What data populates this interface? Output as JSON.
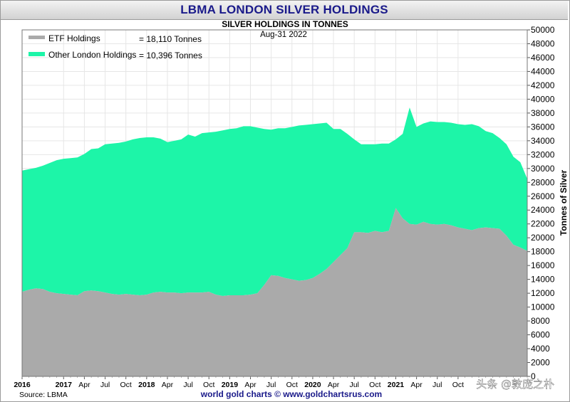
{
  "header": {
    "title": "LBMA LONDON SILVER HOLDINGS"
  },
  "footer": {
    "source": "Source: LBMA",
    "credit": "world gold charts © www.goldchartsrus.com",
    "watermark": "头条 @敦庞之朴"
  },
  "chart_data": {
    "type": "area",
    "stacked": true,
    "title": "SILVER HOLDINGS IN TONNES",
    "subtitle": "Aug-31  2022",
    "xlabel": "",
    "ylabel": "Tonnes of Silver",
    "ylim": [
      0,
      50000
    ],
    "ytick_step": 2000,
    "grid": true,
    "legend_position": "top-left",
    "x_start": "2016-07",
    "x_end": "2022-08",
    "x_ticks": [
      {
        "label": "2016",
        "date": "2016-07",
        "bold": true
      },
      {
        "label": "2017",
        "date": "2017-01",
        "bold": true
      },
      {
        "label": "Apr",
        "date": "2017-04",
        "bold": false
      },
      {
        "label": "Jul",
        "date": "2017-07",
        "bold": false
      },
      {
        "label": "Oct",
        "date": "2017-10",
        "bold": false
      },
      {
        "label": "2018",
        "date": "2018-01",
        "bold": true
      },
      {
        "label": "Apr",
        "date": "2018-04",
        "bold": false
      },
      {
        "label": "Jul",
        "date": "2018-07",
        "bold": false
      },
      {
        "label": "Oct",
        "date": "2018-10",
        "bold": false
      },
      {
        "label": "2019",
        "date": "2019-01",
        "bold": true
      },
      {
        "label": "Apr",
        "date": "2019-04",
        "bold": false
      },
      {
        "label": "Jul",
        "date": "2019-07",
        "bold": false
      },
      {
        "label": "Oct",
        "date": "2019-10",
        "bold": false
      },
      {
        "label": "2020",
        "date": "2020-01",
        "bold": true
      },
      {
        "label": "Apr",
        "date": "2020-04",
        "bold": false
      },
      {
        "label": "Jul",
        "date": "2020-07",
        "bold": false
      },
      {
        "label": "Oct",
        "date": "2020-10",
        "bold": false
      },
      {
        "label": "2021",
        "date": "2021-01",
        "bold": true
      },
      {
        "label": "Apr",
        "date": "2021-04",
        "bold": false
      },
      {
        "label": "Jul",
        "date": "2021-07",
        "bold": false
      },
      {
        "label": "Oct",
        "date": "2021-10",
        "bold": false
      }
    ],
    "series": [
      {
        "name": "ETF Holdings",
        "legend_value": "= 18,110 Tonnes",
        "color": "#aaaaaa",
        "points": [
          [
            "2016-07",
            12200
          ],
          [
            "2016-08",
            12500
          ],
          [
            "2016-09",
            12700
          ],
          [
            "2016-10",
            12600
          ],
          [
            "2016-11",
            12200
          ],
          [
            "2016-12",
            12000
          ],
          [
            "2017-01",
            11900
          ],
          [
            "2017-02",
            11800
          ],
          [
            "2017-03",
            11700
          ],
          [
            "2017-04",
            12300
          ],
          [
            "2017-05",
            12400
          ],
          [
            "2017-06",
            12300
          ],
          [
            "2017-07",
            12100
          ],
          [
            "2017-08",
            11900
          ],
          [
            "2017-09",
            11800
          ],
          [
            "2017-10",
            11900
          ],
          [
            "2017-11",
            11800
          ],
          [
            "2017-12",
            11700
          ],
          [
            "2018-01",
            11800
          ],
          [
            "2018-02",
            12100
          ],
          [
            "2018-03",
            12200
          ],
          [
            "2018-04",
            12100
          ],
          [
            "2018-05",
            12100
          ],
          [
            "2018-06",
            12000
          ],
          [
            "2018-07",
            12100
          ],
          [
            "2018-08",
            12100
          ],
          [
            "2018-09",
            12100
          ],
          [
            "2018-10",
            12200
          ],
          [
            "2018-11",
            11800
          ],
          [
            "2018-12",
            11600
          ],
          [
            "2019-01",
            11700
          ],
          [
            "2019-02",
            11700
          ],
          [
            "2019-03",
            11700
          ],
          [
            "2019-04",
            11800
          ],
          [
            "2019-05",
            12000
          ],
          [
            "2019-06",
            13200
          ],
          [
            "2019-07",
            14600
          ],
          [
            "2019-08",
            14500
          ],
          [
            "2019-09",
            14200
          ],
          [
            "2019-10",
            14000
          ],
          [
            "2019-11",
            13800
          ],
          [
            "2019-12",
            13900
          ],
          [
            "2020-01",
            14200
          ],
          [
            "2020-02",
            14800
          ],
          [
            "2020-03",
            15500
          ],
          [
            "2020-04",
            16500
          ],
          [
            "2020-05",
            17500
          ],
          [
            "2020-06",
            18500
          ],
          [
            "2020-07",
            20800
          ],
          [
            "2020-08",
            20800
          ],
          [
            "2020-09",
            20700
          ],
          [
            "2020-10",
            21000
          ],
          [
            "2020-11",
            20800
          ],
          [
            "2020-12",
            21000
          ],
          [
            "2021-01",
            24300
          ],
          [
            "2021-02",
            22800
          ],
          [
            "2021-03",
            22000
          ],
          [
            "2021-04",
            21900
          ],
          [
            "2021-05",
            22300
          ],
          [
            "2021-06",
            22000
          ],
          [
            "2021-07",
            21900
          ],
          [
            "2021-08",
            22000
          ],
          [
            "2021-09",
            21800
          ],
          [
            "2021-10",
            21500
          ],
          [
            "2021-11",
            21300
          ],
          [
            "2021-12",
            21100
          ],
          [
            "2022-01",
            21400
          ],
          [
            "2022-02",
            21500
          ],
          [
            "2022-03",
            21400
          ],
          [
            "2022-04",
            21300
          ],
          [
            "2022-05",
            20300
          ],
          [
            "2022-06",
            19000
          ],
          [
            "2022-07",
            18600
          ],
          [
            "2022-08",
            18110
          ]
        ]
      },
      {
        "name": "Other London Holdings",
        "legend_value": "= 10,396 Tonnes",
        "color": "#1df5a8",
        "total_points": [
          [
            "2016-07",
            29700
          ],
          [
            "2016-08",
            29900
          ],
          [
            "2016-09",
            30100
          ],
          [
            "2016-10",
            30400
          ],
          [
            "2016-11",
            30800
          ],
          [
            "2016-12",
            31200
          ],
          [
            "2017-01",
            31400
          ],
          [
            "2017-02",
            31500
          ],
          [
            "2017-03",
            31600
          ],
          [
            "2017-04",
            32100
          ],
          [
            "2017-05",
            32800
          ],
          [
            "2017-06",
            32900
          ],
          [
            "2017-07",
            33500
          ],
          [
            "2017-08",
            33600
          ],
          [
            "2017-09",
            33700
          ],
          [
            "2017-10",
            33900
          ],
          [
            "2017-11",
            34200
          ],
          [
            "2017-12",
            34400
          ],
          [
            "2018-01",
            34500
          ],
          [
            "2018-02",
            34500
          ],
          [
            "2018-03",
            34300
          ],
          [
            "2018-04",
            33800
          ],
          [
            "2018-05",
            34000
          ],
          [
            "2018-06",
            34200
          ],
          [
            "2018-07",
            34900
          ],
          [
            "2018-08",
            34600
          ],
          [
            "2018-09",
            35100
          ],
          [
            "2018-10",
            35200
          ],
          [
            "2018-11",
            35300
          ],
          [
            "2018-12",
            35500
          ],
          [
            "2019-01",
            35700
          ],
          [
            "2019-02",
            35800
          ],
          [
            "2019-03",
            36100
          ],
          [
            "2019-04",
            36100
          ],
          [
            "2019-05",
            35900
          ],
          [
            "2019-06",
            35700
          ],
          [
            "2019-07",
            35600
          ],
          [
            "2019-08",
            35800
          ],
          [
            "2019-09",
            35800
          ],
          [
            "2019-10",
            36000
          ],
          [
            "2019-11",
            36200
          ],
          [
            "2019-12",
            36300
          ],
          [
            "2020-01",
            36400
          ],
          [
            "2020-02",
            36500
          ],
          [
            "2020-03",
            36600
          ],
          [
            "2020-04",
            35700
          ],
          [
            "2020-05",
            35700
          ],
          [
            "2020-06",
            35000
          ],
          [
            "2020-07",
            34200
          ],
          [
            "2020-08",
            33500
          ],
          [
            "2020-09",
            33500
          ],
          [
            "2020-10",
            33500
          ],
          [
            "2020-11",
            33600
          ],
          [
            "2020-12",
            33600
          ],
          [
            "2021-01",
            34200
          ],
          [
            "2021-02",
            35000
          ],
          [
            "2021-03",
            38800
          ],
          [
            "2021-04",
            36000
          ],
          [
            "2021-05",
            36500
          ],
          [
            "2021-06",
            36800
          ],
          [
            "2021-07",
            36700
          ],
          [
            "2021-08",
            36700
          ],
          [
            "2021-09",
            36600
          ],
          [
            "2021-10",
            36400
          ],
          [
            "2021-11",
            36300
          ],
          [
            "2021-12",
            36400
          ],
          [
            "2022-01",
            36100
          ],
          [
            "2022-02",
            35400
          ],
          [
            "2022-03",
            35100
          ],
          [
            "2022-04",
            34400
          ],
          [
            "2022-05",
            33500
          ],
          [
            "2022-06",
            31700
          ],
          [
            "2022-07",
            30900
          ],
          [
            "2022-08",
            28506
          ]
        ]
      }
    ]
  }
}
